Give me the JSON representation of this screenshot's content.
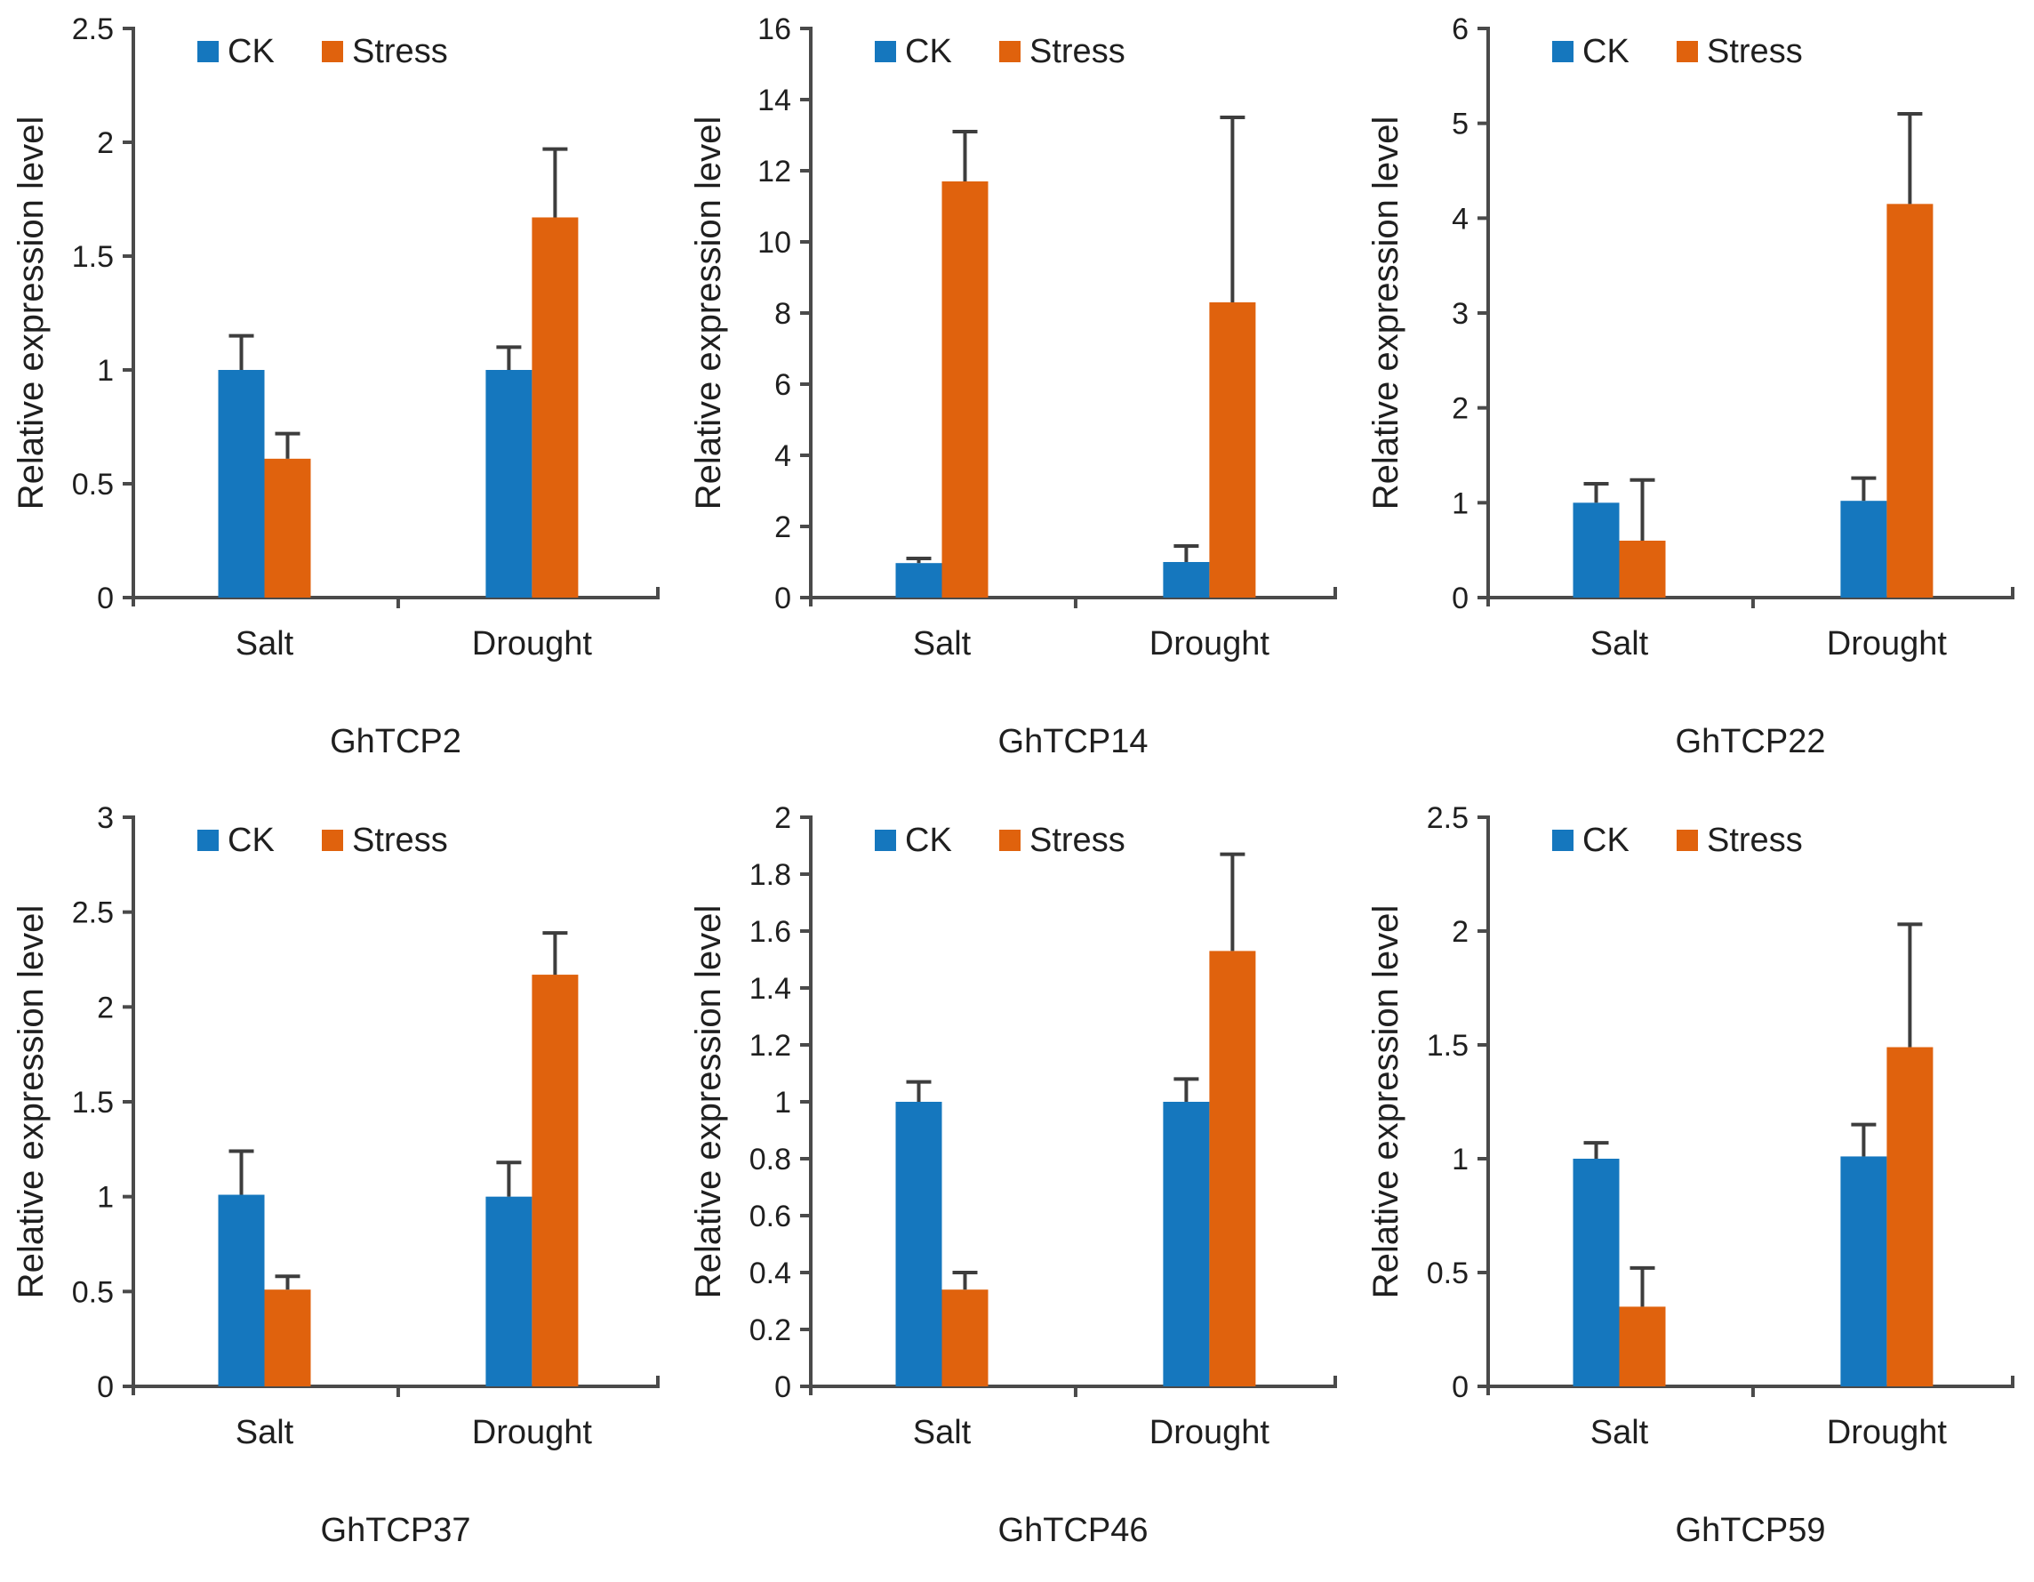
{
  "figure": {
    "ylabel": "Relative expression level",
    "legend_labels": [
      "CK",
      "Stress"
    ],
    "colors": {
      "ck": "#1577BE",
      "stress": "#E0620D",
      "axis": "#4a4a4a",
      "error_bar": "#3d3d3d",
      "text": "#1f1f1f"
    }
  },
  "chart_data": [
    {
      "type": "bar",
      "title": "GhTCP2",
      "ylabel": "Relative expression level",
      "categories": [
        "Salt",
        "Drought"
      ],
      "ylim": [
        0,
        2.5
      ],
      "yticks": [
        0,
        0.5,
        1,
        1.5,
        2,
        2.5
      ],
      "ytick_labels": [
        "0",
        "0.5",
        "1",
        "1.5",
        "2",
        "2.5"
      ],
      "grid": false,
      "legend_position": "top-inside",
      "series": [
        {
          "name": "CK",
          "values": [
            1.0,
            1.0
          ],
          "errors": [
            0.15,
            0.1
          ]
        },
        {
          "name": "Stress",
          "values": [
            0.61,
            1.67
          ],
          "errors": [
            0.11,
            0.3
          ]
        }
      ]
    },
    {
      "type": "bar",
      "title": "GhTCP14",
      "ylabel": "Relative expression level",
      "categories": [
        "Salt",
        "Drought"
      ],
      "ylim": [
        0,
        16
      ],
      "yticks": [
        0,
        2,
        4,
        6,
        8,
        10,
        12,
        14,
        16
      ],
      "ytick_labels": [
        "0",
        "2",
        "4",
        "6",
        "8",
        "10",
        "12",
        "14",
        "16"
      ],
      "grid": false,
      "legend_position": "top-inside",
      "series": [
        {
          "name": "CK",
          "values": [
            0.97,
            1.0
          ],
          "errors": [
            0.13,
            0.45
          ]
        },
        {
          "name": "Stress",
          "values": [
            11.7,
            8.3
          ],
          "errors": [
            1.4,
            5.2
          ]
        }
      ]
    },
    {
      "type": "bar",
      "title": "GhTCP22",
      "ylabel": "Relative expression level",
      "categories": [
        "Salt",
        "Drought"
      ],
      "ylim": [
        0,
        6
      ],
      "yticks": [
        0,
        1,
        2,
        3,
        4,
        5,
        6
      ],
      "ytick_labels": [
        "0",
        "1",
        "2",
        "3",
        "4",
        "5",
        "6"
      ],
      "grid": false,
      "legend_position": "top-inside",
      "series": [
        {
          "name": "CK",
          "values": [
            1.0,
            1.02
          ],
          "errors": [
            0.2,
            0.24
          ]
        },
        {
          "name": "Stress",
          "values": [
            0.6,
            4.15
          ],
          "errors": [
            0.64,
            0.95
          ]
        }
      ]
    },
    {
      "type": "bar",
      "title": "GhTCP37",
      "ylabel": "Relative expression level",
      "categories": [
        "Salt",
        "Drought"
      ],
      "ylim": [
        0,
        3
      ],
      "yticks": [
        0,
        0.5,
        1,
        1.5,
        2,
        2.5,
        3
      ],
      "ytick_labels": [
        "0",
        "0.5",
        "1",
        "1.5",
        "2",
        "2.5",
        "3"
      ],
      "grid": false,
      "legend_position": "top-inside",
      "series": [
        {
          "name": "CK",
          "values": [
            1.01,
            1.0
          ],
          "errors": [
            0.23,
            0.18
          ]
        },
        {
          "name": "Stress",
          "values": [
            0.51,
            2.17
          ],
          "errors": [
            0.07,
            0.22
          ]
        }
      ]
    },
    {
      "type": "bar",
      "title": "GhTCP46",
      "ylabel": "Relative expression level",
      "categories": [
        "Salt",
        "Drought"
      ],
      "ylim": [
        0,
        2
      ],
      "yticks": [
        0,
        0.2,
        0.4,
        0.6,
        0.8,
        1,
        1.2,
        1.4,
        1.6,
        1.8,
        2
      ],
      "ytick_labels": [
        "0",
        "0.2",
        "0.4",
        "0.6",
        "0.8",
        "1",
        "1.2",
        "1.4",
        "1.6",
        "1.8",
        "2"
      ],
      "grid": false,
      "legend_position": "top-inside",
      "series": [
        {
          "name": "CK",
          "values": [
            1.0,
            1.0
          ],
          "errors": [
            0.07,
            0.08
          ]
        },
        {
          "name": "Stress",
          "values": [
            0.34,
            1.53
          ],
          "errors": [
            0.06,
            0.34
          ]
        }
      ]
    },
    {
      "type": "bar",
      "title": "GhTCP59",
      "ylabel": "Relative expression level",
      "categories": [
        "Salt",
        "Drought"
      ],
      "ylim": [
        0,
        2.5
      ],
      "yticks": [
        0,
        0.5,
        1,
        1.5,
        2,
        2.5
      ],
      "ytick_labels": [
        "0",
        "0.5",
        "1",
        "1.5",
        "2",
        "2.5"
      ],
      "grid": false,
      "legend_position": "top-inside",
      "series": [
        {
          "name": "CK",
          "values": [
            1.0,
            1.01
          ],
          "errors": [
            0.07,
            0.14
          ]
        },
        {
          "name": "Stress",
          "values": [
            0.35,
            1.49
          ],
          "errors": [
            0.17,
            0.54
          ]
        }
      ]
    }
  ]
}
